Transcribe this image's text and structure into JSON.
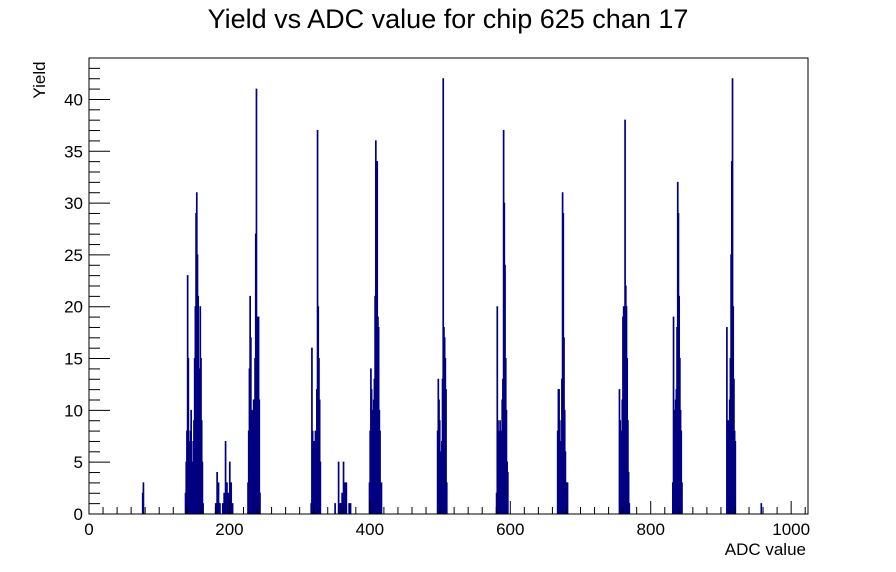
{
  "chart_data": {
    "type": "bar",
    "title": "Yield vs ADC value for chip 625 chan 17",
    "xlabel": "ADC value",
    "ylabel": "Yield",
    "xlim": [
      0,
      1024
    ],
    "ylim": [
      0,
      44
    ],
    "grid": false,
    "legend": "none",
    "color": "#000080",
    "x_ticks": [
      0,
      200,
      400,
      600,
      800,
      1000
    ],
    "y_ticks": [
      0,
      5,
      10,
      15,
      20,
      25,
      30,
      35,
      40
    ],
    "bins": [
      [
        76,
        2
      ],
      [
        77,
        3
      ],
      [
        137,
        2
      ],
      [
        138,
        5
      ],
      [
        139,
        8
      ],
      [
        140,
        23
      ],
      [
        141,
        15
      ],
      [
        142,
        7
      ],
      [
        143,
        5
      ],
      [
        144,
        8
      ],
      [
        145,
        10
      ],
      [
        146,
        5
      ],
      [
        147,
        2
      ],
      [
        148,
        7
      ],
      [
        149,
        9
      ],
      [
        150,
        15
      ],
      [
        151,
        20
      ],
      [
        152,
        29
      ],
      [
        153,
        31
      ],
      [
        154,
        25
      ],
      [
        155,
        21
      ],
      [
        156,
        13
      ],
      [
        157,
        14
      ],
      [
        158,
        20
      ],
      [
        159,
        15
      ],
      [
        160,
        9
      ],
      [
        161,
        5
      ],
      [
        162,
        1
      ],
      [
        180,
        1
      ],
      [
        182,
        4
      ],
      [
        184,
        3
      ],
      [
        186,
        1
      ],
      [
        190,
        1
      ],
      [
        192,
        2
      ],
      [
        194,
        7
      ],
      [
        196,
        3
      ],
      [
        198,
        2
      ],
      [
        200,
        5
      ],
      [
        202,
        3
      ],
      [
        204,
        1
      ],
      [
        226,
        3
      ],
      [
        227,
        8
      ],
      [
        228,
        14
      ],
      [
        229,
        21
      ],
      [
        230,
        17
      ],
      [
        231,
        10
      ],
      [
        232,
        8
      ],
      [
        233,
        10
      ],
      [
        234,
        11
      ],
      [
        235,
        9
      ],
      [
        236,
        15
      ],
      [
        237,
        27
      ],
      [
        238,
        41
      ],
      [
        239,
        17
      ],
      [
        240,
        19
      ],
      [
        241,
        19
      ],
      [
        242,
        11
      ],
      [
        243,
        2
      ],
      [
        316,
        1
      ],
      [
        317,
        16
      ],
      [
        318,
        8
      ],
      [
        319,
        6
      ],
      [
        320,
        7
      ],
      [
        321,
        3
      ],
      [
        322,
        8
      ],
      [
        323,
        5
      ],
      [
        324,
        12
      ],
      [
        325,
        37
      ],
      [
        326,
        20
      ],
      [
        327,
        15
      ],
      [
        328,
        11
      ],
      [
        329,
        5
      ],
      [
        350,
        1
      ],
      [
        355,
        5
      ],
      [
        357,
        1
      ],
      [
        358,
        1
      ],
      [
        360,
        2
      ],
      [
        362,
        5
      ],
      [
        364,
        3
      ],
      [
        366,
        3
      ],
      [
        370,
        1
      ],
      [
        372,
        1
      ],
      [
        399,
        3
      ],
      [
        400,
        8
      ],
      [
        401,
        14
      ],
      [
        402,
        12
      ],
      [
        403,
        9
      ],
      [
        404,
        10
      ],
      [
        405,
        11
      ],
      [
        406,
        13
      ],
      [
        407,
        21
      ],
      [
        408,
        36
      ],
      [
        409,
        30
      ],
      [
        410,
        34
      ],
      [
        411,
        19
      ],
      [
        412,
        18
      ],
      [
        413,
        10
      ],
      [
        414,
        8
      ],
      [
        416,
        3
      ],
      [
        496,
        8
      ],
      [
        497,
        13
      ],
      [
        498,
        11
      ],
      [
        499,
        9
      ],
      [
        500,
        6
      ],
      [
        501,
        5
      ],
      [
        502,
        7
      ],
      [
        503,
        13
      ],
      [
        504,
        42
      ],
      [
        505,
        18
      ],
      [
        506,
        17
      ],
      [
        507,
        15
      ],
      [
        508,
        12
      ],
      [
        509,
        3
      ],
      [
        580,
        2
      ],
      [
        581,
        20
      ],
      [
        582,
        9
      ],
      [
        583,
        8
      ],
      [
        584,
        7
      ],
      [
        585,
        9
      ],
      [
        586,
        8
      ],
      [
        587,
        6
      ],
      [
        588,
        11
      ],
      [
        589,
        13
      ],
      [
        590,
        37
      ],
      [
        591,
        30
      ],
      [
        592,
        24
      ],
      [
        593,
        15
      ],
      [
        594,
        10
      ],
      [
        595,
        5
      ],
      [
        596,
        4
      ],
      [
        667,
        8
      ],
      [
        668,
        12
      ],
      [
        669,
        12
      ],
      [
        670,
        9
      ],
      [
        671,
        7
      ],
      [
        672,
        6
      ],
      [
        673,
        13
      ],
      [
        674,
        31
      ],
      [
        675,
        29
      ],
      [
        676,
        17
      ],
      [
        677,
        10
      ],
      [
        678,
        6
      ],
      [
        679,
        3
      ],
      [
        680,
        3
      ],
      [
        681,
        3
      ],
      [
        755,
        12
      ],
      [
        756,
        9
      ],
      [
        757,
        8
      ],
      [
        758,
        5
      ],
      [
        759,
        11
      ],
      [
        760,
        19
      ],
      [
        761,
        20
      ],
      [
        762,
        18
      ],
      [
        763,
        38
      ],
      [
        764,
        22
      ],
      [
        765,
        20
      ],
      [
        766,
        15
      ],
      [
        767,
        9
      ],
      [
        768,
        4
      ],
      [
        769,
        1
      ],
      [
        831,
        3
      ],
      [
        832,
        19
      ],
      [
        833,
        10
      ],
      [
        834,
        8
      ],
      [
        835,
        11
      ],
      [
        836,
        12
      ],
      [
        837,
        18
      ],
      [
        838,
        32
      ],
      [
        839,
        29
      ],
      [
        840,
        21
      ],
      [
        841,
        15
      ],
      [
        842,
        10
      ],
      [
        843,
        8
      ],
      [
        844,
        3
      ],
      [
        908,
        18
      ],
      [
        909,
        7
      ],
      [
        910,
        9
      ],
      [
        911,
        6
      ],
      [
        912,
        11
      ],
      [
        913,
        15
      ],
      [
        914,
        25
      ],
      [
        915,
        34
      ],
      [
        916,
        42
      ],
      [
        917,
        20
      ],
      [
        918,
        13
      ],
      [
        919,
        8
      ],
      [
        920,
        7
      ],
      [
        957,
        1
      ]
    ]
  }
}
